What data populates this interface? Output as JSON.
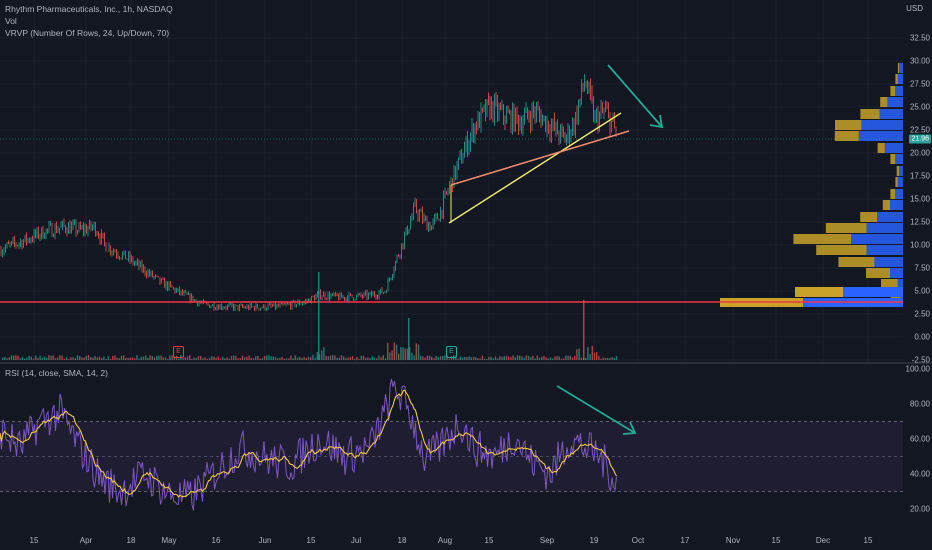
{
  "header": {
    "title": "Rhythm Pharmaceuticals, Inc., 1h, NASDAQ",
    "vol": "Vol",
    "vrvp": "VRVP (Number Of Rows, 24, Up/Down, 70)",
    "currency": "USD"
  },
  "rsi": {
    "title": "RSI (14, close, SMA, 14, 2)",
    "levels": [
      "100.00",
      "80.00",
      "60.00",
      "40.00",
      "20.00"
    ]
  },
  "price_axis": {
    "labels": [
      "32.50",
      "30.00",
      "27.50",
      "25.00",
      "22.50",
      "20.00",
      "17.50",
      "15.00",
      "12.50",
      "10.00",
      "7.50",
      "5.00",
      "2.50",
      "0.00",
      "-2.50"
    ],
    "current_price": "21.96"
  },
  "time_axis": {
    "labels": [
      "15",
      "Apr",
      "18",
      "May",
      "16",
      "Jun",
      "15",
      "Jul",
      "18",
      "Aug",
      "15",
      "Sep",
      "19",
      "Oct",
      "17",
      "Nov",
      "15",
      "Dec",
      "15"
    ]
  },
  "earnings_markers": [
    "E",
    "E"
  ],
  "colors": {
    "background": "#131722",
    "up": "#26a69a",
    "down": "#ef5350",
    "support_line": "#f23645",
    "trend_yellow": "#e9e86b",
    "trend_orange": "#f28b6b",
    "arrow": "#22ab94",
    "rsi_line": "#7e57c2",
    "rsi_sma": "#f5c542",
    "vp_up": "#2962ff",
    "vp_down": "#c9a227"
  },
  "chart_data": {
    "type": "line",
    "title": "Rhythm Pharmaceuticals, Inc., 1h, NASDAQ",
    "x": [
      "15",
      "Apr",
      "18",
      "May",
      "16",
      "Jun",
      "15",
      "Jul",
      "18",
      "Aug",
      "15",
      "Sep",
      "19"
    ],
    "series": [
      {
        "values": [
          9.6,
          12.2,
          10.5,
          7.6,
          4.2,
          3.6,
          4.0,
          4.5,
          6.6,
          14.5,
          23.5,
          24.5,
          23.3
        ]
      }
    ],
    "ylim": [
      -2.5,
      32.5
    ],
    "support_level": 3.5,
    "rsi": {
      "ylim": [
        20,
        100
      ],
      "upper_band": 70,
      "lower_band": 30,
      "mid": 50
    }
  }
}
